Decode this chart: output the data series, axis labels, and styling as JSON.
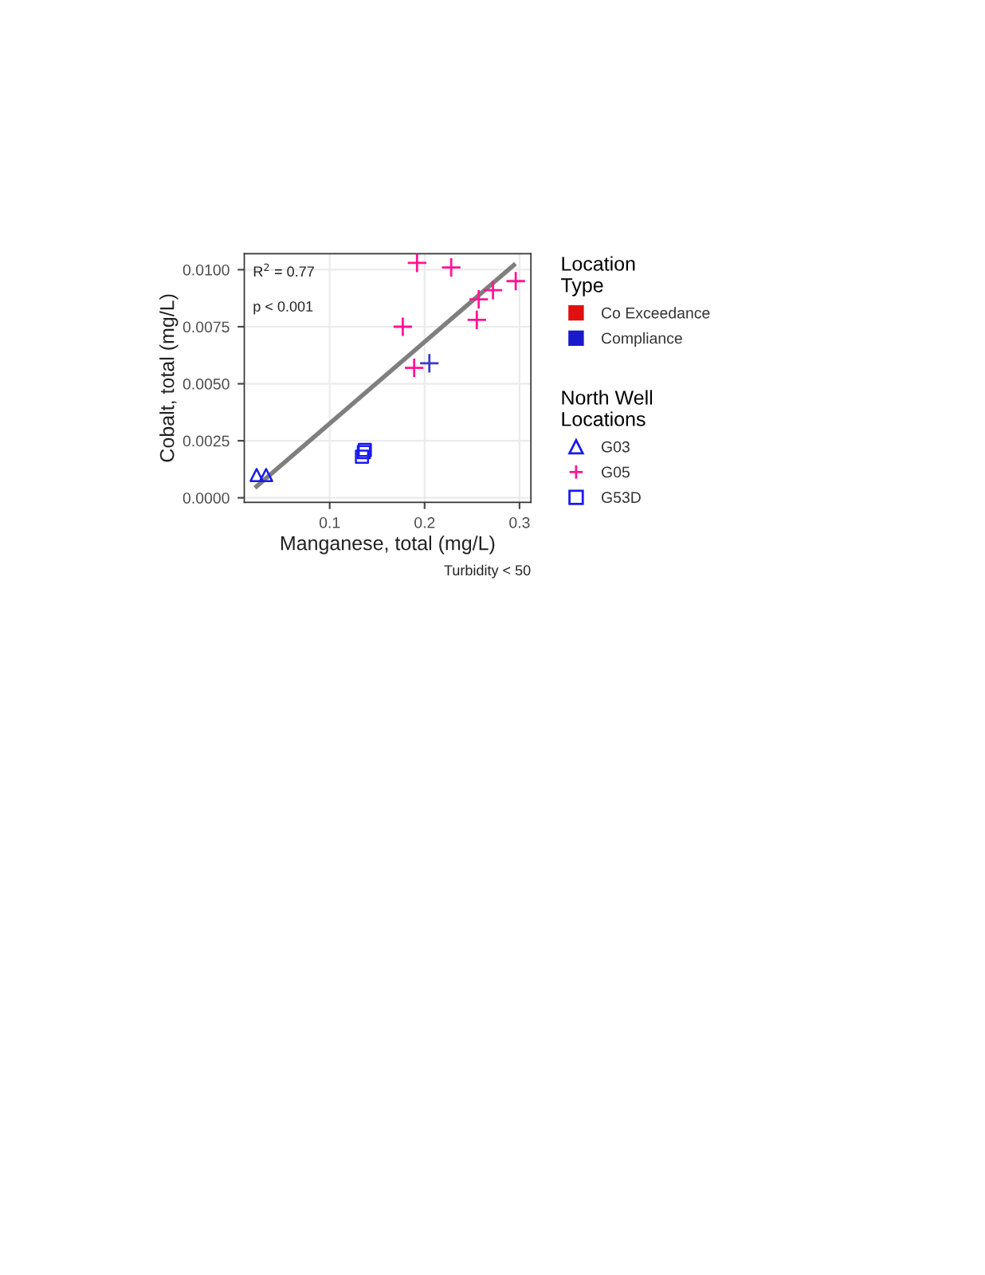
{
  "chart_data": {
    "type": "scatter",
    "xlabel": "Manganese, total (mg/L)",
    "ylabel": "Cobalt, total (mg/L)",
    "xlim": [
      0.01,
      0.312
    ],
    "ylim": [
      -0.0002,
      0.0107
    ],
    "xticks": [
      0.1,
      0.2,
      0.3
    ],
    "yticks": [
      {
        "value": 0,
        "label": "0.0000"
      },
      {
        "value": 0.0025,
        "label": "0.0025"
      },
      {
        "value": 0.005,
        "label": "0.0050"
      },
      {
        "value": 0.0075,
        "label": "0.0075"
      },
      {
        "value": 0.01,
        "label": "0.0100"
      }
    ],
    "grid": true,
    "legend": "right",
    "legend_title": [
      "Location\nType",
      "North Well\nLocations"
    ],
    "annotations": [
      "R$^{2}$ = 0.77",
      "p < 0.001",
      "Turbidity < 50"
    ],
    "series": [
      {
        "name": "Co Exceedance",
        "marker": "square",
        "color": "#e01010"
      },
      {
        "name": "Compliance",
        "marker": "square",
        "color": "#1a1acc"
      },
      {
        "name": "G03",
        "marker": "triangle",
        "color": "#1a1aee",
        "x": [
          0.023,
          0.033
        ],
        "values": [
          0.001,
          0.001
        ]
      },
      {
        "name": "G05",
        "marker": "cross",
        "color": "#ff1493",
        "colors": [
          "#ff1493",
          "#ff1493",
          "#ff1493",
          "#ff1493",
          "#3a3acc",
          "#ff1493",
          "#ff1493",
          "#ff1493",
          "#ff1493"
        ],
        "x": [
          0.177,
          0.192,
          0.228,
          0.189,
          0.205,
          0.255,
          0.257,
          0.272,
          0.296
        ],
        "values": [
          0.0075,
          0.0103,
          0.0101,
          0.0057,
          0.0059,
          0.0078,
          0.0087,
          0.0091,
          0.0095
        ]
      },
      {
        "name": "G53D",
        "marker": "square",
        "color": "#1a1aee",
        "x": [
          0.134,
          0.136,
          0.137
        ],
        "values": [
          0.0018,
          0.002,
          0.0021
        ]
      },
      {
        "type": "line",
        "color": "#7f7f7f",
        "line_style": "solid",
        "x": [
          0.023,
          0.294
        ],
        "values": [
          0.0005,
          0.0102
        ]
      }
    ]
  }
}
